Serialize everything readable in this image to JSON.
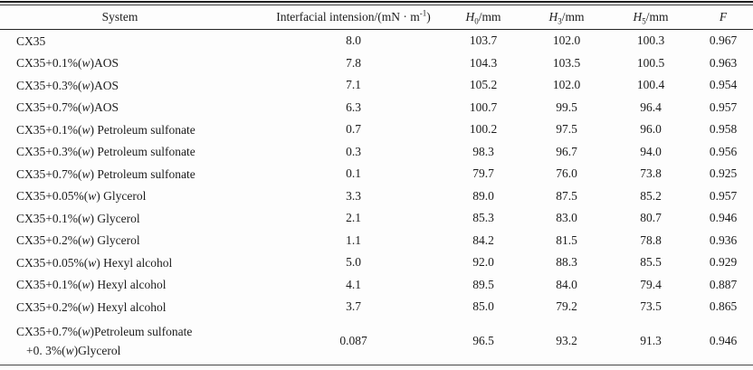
{
  "table": {
    "headers": {
      "system": "System",
      "interfacial": {
        "pre": "Interfacial intension/(mN · m",
        "sup": "-1",
        "post": ")"
      },
      "h0": {
        "var": "H",
        "sub": "0",
        "post": "/mm"
      },
      "h3": {
        "var": "H",
        "sub": "3",
        "post": "/mm"
      },
      "h5": {
        "var": "H",
        "sub": "5",
        "post": "/mm"
      },
      "f": {
        "var": "F"
      }
    },
    "rows": [
      {
        "system": [
          "CX35"
        ],
        "values": [
          "8.0",
          "103.7",
          "102.0",
          "100.3",
          "0.967"
        ]
      },
      {
        "system": [
          "CX35+0.1%(w)AOS"
        ],
        "values": [
          "7.8",
          "104.3",
          "103.5",
          "100.5",
          "0.963"
        ]
      },
      {
        "system": [
          "CX35+0.3%(w)AOS"
        ],
        "values": [
          "7.1",
          "105.2",
          "102.0",
          "100.4",
          "0.954"
        ]
      },
      {
        "system": [
          "CX35+0.7%(w)AOS"
        ],
        "values": [
          "6.3",
          "100.7",
          "99.5",
          "96.4",
          "0.957"
        ]
      },
      {
        "system": [
          "CX35+0.1%(w) Petroleum sulfonate"
        ],
        "values": [
          "0.7",
          "100.2",
          "97.5",
          "96.0",
          "0.958"
        ]
      },
      {
        "system": [
          "CX35+0.3%(w) Petroleum sulfonate"
        ],
        "values": [
          "0.3",
          "98.3",
          "96.7",
          "94.0",
          "0.956"
        ]
      },
      {
        "system": [
          "CX35+0.7%(w) Petroleum sulfonate"
        ],
        "values": [
          "0.1",
          "79.7",
          "76.0",
          "73.8",
          "0.925"
        ]
      },
      {
        "system": [
          "CX35+0.05%(w) Glycerol"
        ],
        "values": [
          "3.3",
          "89.0",
          "87.5",
          "85.2",
          "0.957"
        ]
      },
      {
        "system": [
          "CX35+0.1%(w) Glycerol"
        ],
        "values": [
          "2.1",
          "85.3",
          "83.0",
          "80.7",
          "0.946"
        ]
      },
      {
        "system": [
          "CX35+0.2%(w) Glycerol"
        ],
        "values": [
          "1.1",
          "84.2",
          "81.5",
          "78.8",
          "0.936"
        ]
      },
      {
        "system": [
          "CX35+0.05%(w) Hexyl alcohol"
        ],
        "values": [
          "5.0",
          "92.0",
          "88.3",
          "85.5",
          "0.929"
        ]
      },
      {
        "system": [
          "CX35+0.1%(w) Hexyl alcohol"
        ],
        "values": [
          "4.1",
          "89.5",
          "84.0",
          "79.4",
          "0.887"
        ]
      },
      {
        "system": [
          "CX35+0.2%(w) Hexyl alcohol"
        ],
        "values": [
          "3.7",
          "85.0",
          "79.2",
          "73.5",
          "0.865"
        ]
      },
      {
        "system": [
          "CX35+0.7%(w)Petroleum sulfonate",
          "+0. 3%(w)Glycerol"
        ],
        "values": [
          "0.087",
          "96.5",
          "93.2",
          "91.3",
          "0.946"
        ]
      }
    ]
  }
}
